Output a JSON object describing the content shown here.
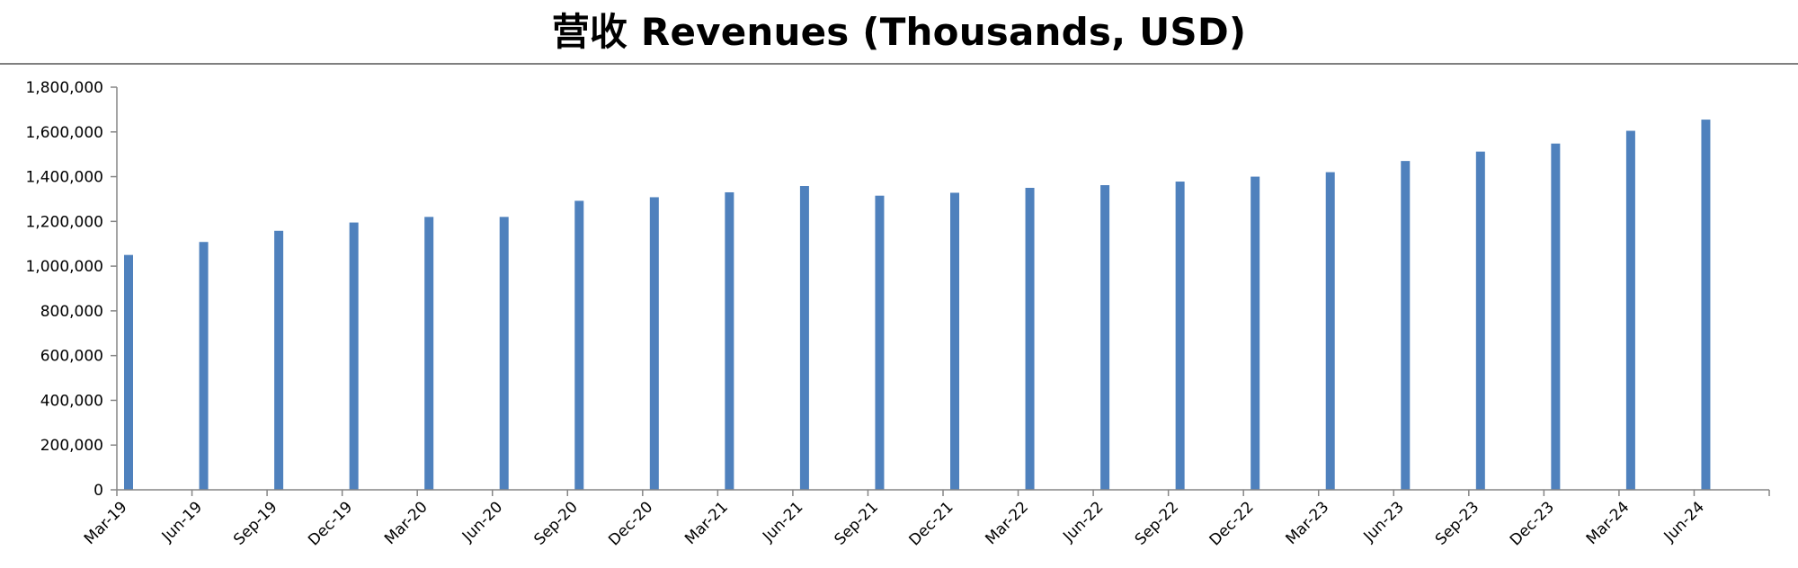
{
  "chart_data": {
    "type": "bar",
    "title": "营收 Revenues (Thousands, USD)",
    "xlabel": "",
    "ylabel": "",
    "categories": [
      "Mar-19",
      "Jun-19",
      "Sep-19",
      "Dec-19",
      "Mar-20",
      "Jun-20",
      "Sep-20",
      "Dec-20",
      "Mar-21",
      "Jun-21",
      "Sep-21",
      "Dec-21",
      "Mar-22",
      "Jun-22",
      "Sep-22",
      "Dec-22",
      "Mar-23",
      "Jun-23",
      "Sep-23",
      "Dec-23",
      "Mar-24",
      "Jun-24"
    ],
    "values": [
      1050000,
      1108000,
      1158000,
      1195000,
      1220000,
      1220000,
      1292000,
      1308000,
      1330000,
      1358000,
      1315000,
      1328000,
      1350000,
      1362000,
      1378000,
      1400000,
      1420000,
      1470000,
      1512000,
      1548000,
      1605000,
      1655000
    ],
    "ylim": [
      0,
      1800000
    ],
    "yticks": [
      0,
      200000,
      400000,
      600000,
      800000,
      1000000,
      1200000,
      1400000,
      1600000,
      1800000
    ],
    "ytick_labels": [
      "0",
      "200,000",
      "400,000",
      "600,000",
      "800,000",
      "1,000,000",
      "1,200,000",
      "1,400,000",
      "1,600,000",
      "1,800,000"
    ],
    "grid": false,
    "legend": "none",
    "colors": {
      "bar": "#4f81bd",
      "axis": "#868686",
      "text": "#000000"
    }
  }
}
